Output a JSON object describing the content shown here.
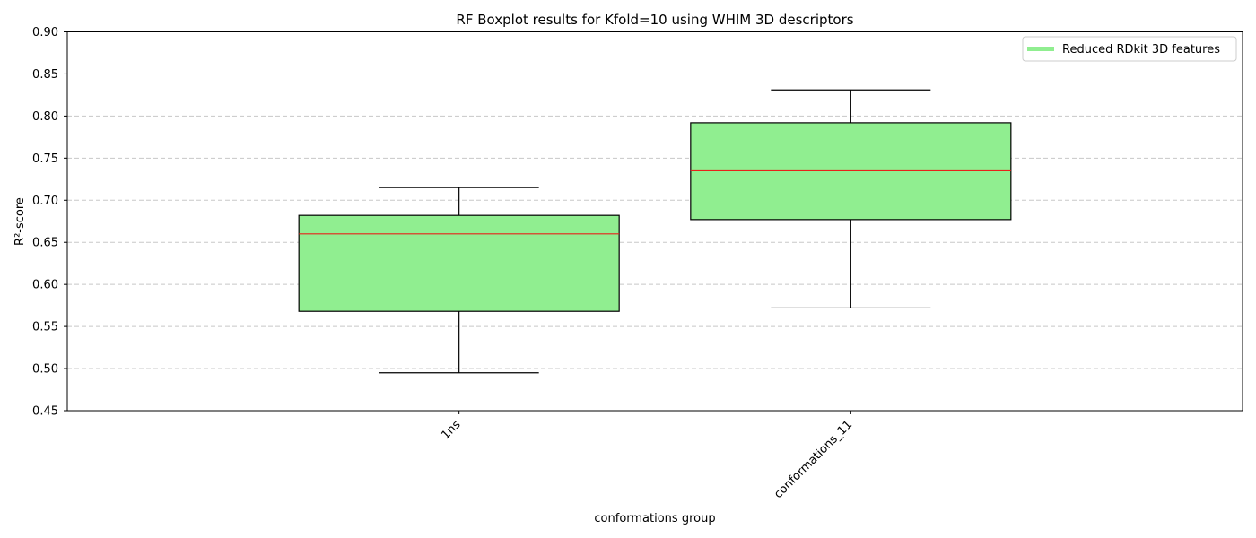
{
  "chart_data": {
    "type": "boxplot",
    "title": "RF Boxplot results for Kfold=10 using WHIM 3D descriptors",
    "xlabel": "conformations group",
    "ylabel": "R²-score",
    "ylim": [
      0.45,
      0.9
    ],
    "yticks": [
      "0.45",
      "0.50",
      "0.55",
      "0.60",
      "0.65",
      "0.70",
      "0.75",
      "0.80",
      "0.85",
      "0.90"
    ],
    "grid": "horizontal dashed",
    "legend": {
      "position": "top-right",
      "entries": [
        "Reduced RDkit 3D features"
      ]
    },
    "categories": [
      "1ns",
      "conformations_11"
    ],
    "boxes": [
      {
        "category": "1ns",
        "whisker_low": 0.495,
        "q1": 0.568,
        "median": 0.66,
        "q3": 0.682,
        "whisker_high": 0.715
      },
      {
        "category": "conformations_11",
        "whisker_low": 0.572,
        "q1": 0.677,
        "median": 0.735,
        "q3": 0.792,
        "whisker_high": 0.831
      }
    ],
    "colors": {
      "box_fill": "#90ee90",
      "median": "#e8221a",
      "edge": "#000000",
      "grid": "#c8c8c8"
    }
  }
}
